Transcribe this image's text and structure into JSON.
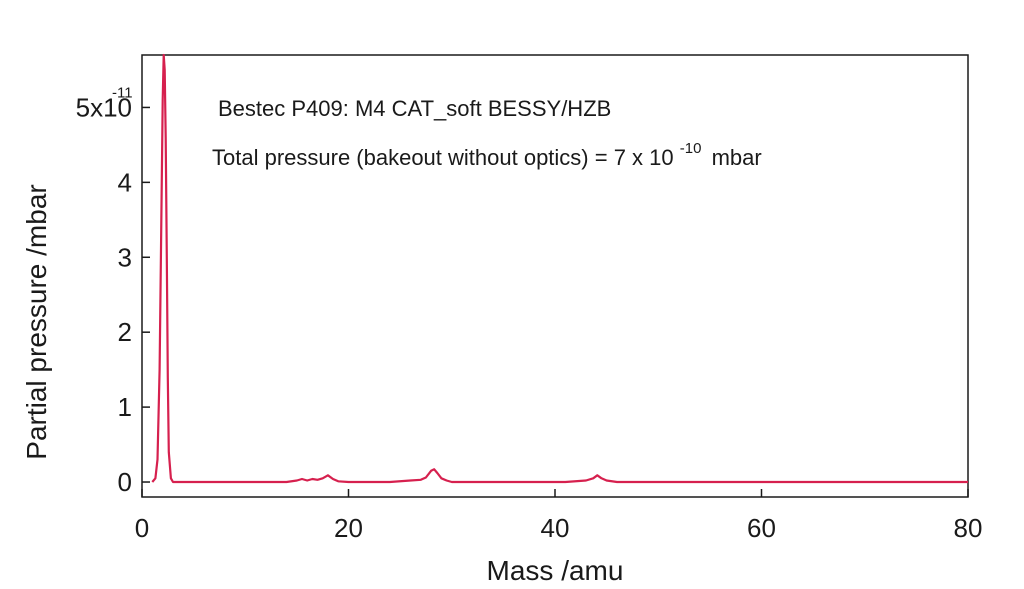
{
  "chart_data": {
    "type": "line",
    "title": "",
    "xlabel": "Mass /amu",
    "ylabel": "Partial pressure /mbar",
    "xlim": [
      0,
      80
    ],
    "ylim": [
      -0.2,
      5.7
    ],
    "x_ticks": [
      0,
      20,
      40,
      60,
      80
    ],
    "y_ticks": [
      0,
      1,
      2,
      3,
      4,
      5
    ],
    "y_tick_labels": [
      "0",
      "1",
      "2",
      "3",
      "4",
      "5x10"
    ],
    "y_scale_exponent": "-11",
    "grid": false,
    "line_color": "#d6204e",
    "annotations": {
      "line1": "Bestec P409: M4 CAT_soft BESSY/HZB",
      "line2_prefix": "Total pressure (bakeout without optics) = 7 x 10",
      "line2_exponent": "-10",
      "line2_suffix": "mbar"
    },
    "series": [
      {
        "x": [
          1.0,
          1.3,
          1.5,
          1.7,
          1.9,
          2.0,
          2.1,
          2.2,
          2.3,
          2.4,
          2.5,
          2.6,
          2.8,
          3.0,
          4,
          6,
          8,
          10,
          12,
          14,
          15,
          15.5,
          16,
          16.5,
          17,
          17.5,
          18,
          18.5,
          19,
          20,
          22,
          24,
          26,
          27,
          27.5,
          28,
          28.3,
          28.6,
          29,
          29.5,
          30,
          32,
          35,
          38,
          41,
          43,
          43.7,
          44.1,
          44.5,
          45,
          46,
          50,
          55,
          60,
          65,
          70,
          75,
          80
        ],
        "y": [
          0.0,
          0.05,
          0.3,
          1.5,
          3.8,
          5.1,
          5.7,
          5.5,
          4.6,
          3.0,
          1.4,
          0.4,
          0.05,
          0.0,
          0.0,
          0.0,
          0.0,
          0.0,
          0.0,
          0.0,
          0.02,
          0.04,
          0.02,
          0.04,
          0.03,
          0.05,
          0.09,
          0.04,
          0.01,
          0.0,
          0.0,
          0.0,
          0.02,
          0.03,
          0.06,
          0.15,
          0.17,
          0.12,
          0.05,
          0.02,
          0.0,
          0.0,
          0.0,
          0.0,
          0.0,
          0.02,
          0.05,
          0.09,
          0.05,
          0.02,
          0.0,
          0.0,
          0.0,
          0.0,
          0.0,
          0.0,
          0.0,
          0.0
        ]
      }
    ]
  }
}
